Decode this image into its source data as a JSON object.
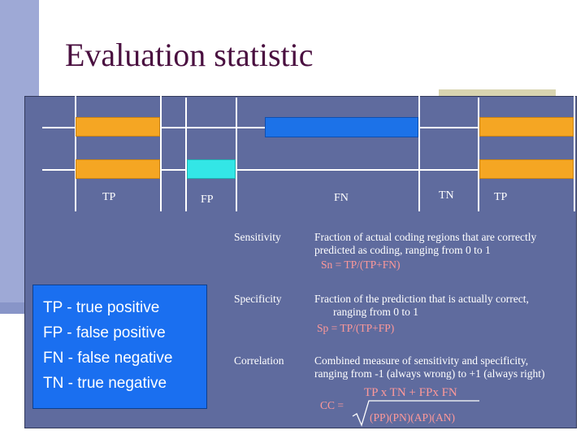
{
  "slide": {
    "title": "Evaluation statistic"
  },
  "segments": {
    "tp1": "TP",
    "fp": "FP",
    "fn": "FN",
    "tn": "TN",
    "tp2": "TP"
  },
  "definitions": [
    {
      "term": "Sensitivity",
      "desc_line1": "Fraction of actual coding regions that are correctly",
      "desc_line2": "predicted as coding, ranging from 0 to 1",
      "formula": "Sn  = TP/(TP+FN)"
    },
    {
      "term": "Specificity",
      "desc_line1": "Fraction of the prediction that is actually correct,",
      "desc_line2": "ranging from 0 to 1",
      "formula": "Sp  = TP/(TP+FP)"
    },
    {
      "term": "Correlation",
      "desc_line1": "Combined measure of sensitivity and specificity,",
      "desc_line2": "ranging from -1 (always wrong) to +1 (always right)"
    }
  ],
  "correlation_formula": {
    "lhs": "CC =",
    "numerator": "TP x TN + FPx FN",
    "denominator": "(PP)(PN)(AP)(AN)"
  },
  "legend": [
    "TP - true positive",
    "FP - false positive",
    "FN - false negative",
    "TN - true negative"
  ],
  "colors": {
    "panel": "#5f6b9e",
    "predicted_orange": "#f5a623",
    "false_positive_cyan": "#33e6e6",
    "false_negative_blue": "#1c72e8",
    "formula_pink": "#ff9999",
    "title": "#4a1040"
  }
}
